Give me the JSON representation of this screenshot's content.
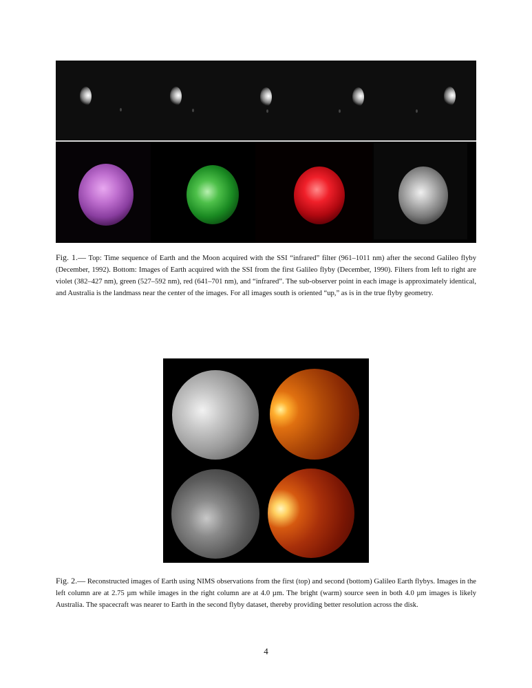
{
  "figure1": {
    "caption_label": "Fig. 1.—",
    "caption_text": "Top: Time sequence of Earth and the Moon acquired with the SSI “infrared” filter (961–1011 nm) after the second Galileo flyby (December, 1992). Bottom: Images of Earth acquired with the SSI from the first Galileo flyby (December, 1990). Filters from left to right are violet (382–427 nm), green (527–592 nm), red (641–701 nm), and “infrared”. The sub-observer point in each image is approximately identical, and Australia is the landmass near the center of the images. For all images south is oriented “up,” as is in the true flyby geometry.",
    "colors": {
      "violet": "#b25cc2",
      "green": "#1f9a2a",
      "red": "#d0101a",
      "infrared": "#9a9a9a"
    }
  },
  "figure2": {
    "caption_label": "Fig. 2.—",
    "caption_text": "Reconstructed images of Earth using NIMS observations from the first (top) and second (bottom) Galileo Earth flybys. Images in the left column are at 2.75 µm while images in the right column are at 4.0 µm. The bright (warm) source seen in both 4.0 µm images is likely Australia. The spacecraft was nearer to Earth in the second flyby dataset, thereby providing better resolution across the disk."
  },
  "page_number": "4"
}
